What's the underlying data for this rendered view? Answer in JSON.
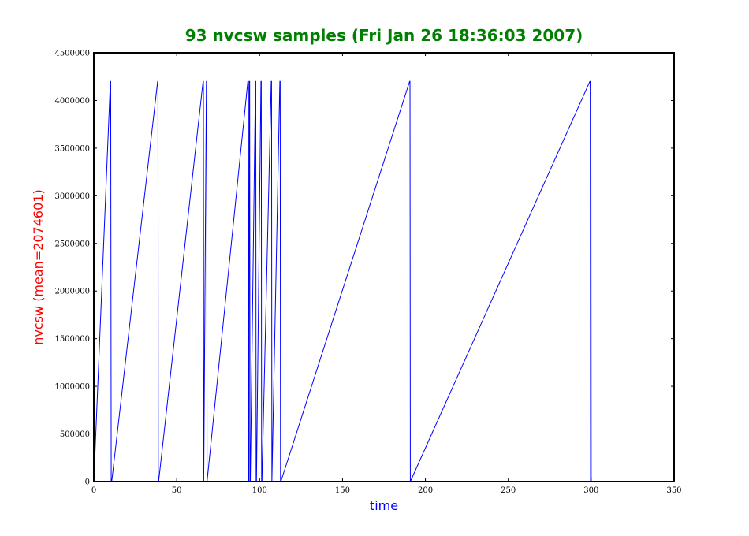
{
  "chart_data": {
    "type": "line",
    "title": "93 nvcsw samples (Fri Jan 26 18:36:03 2007)",
    "xlabel": "time",
    "ylabel": "nvcsw (mean=2074601)",
    "xlim": [
      0,
      350
    ],
    "ylim": [
      0,
      4500000
    ],
    "xticks": [
      0,
      50,
      100,
      150,
      200,
      250,
      300,
      350
    ],
    "yticks": [
      0,
      500000,
      1000000,
      1500000,
      2000000,
      2500000,
      3000000,
      3500000,
      4000000,
      4500000
    ],
    "grid": false,
    "series": [
      {
        "color": "#0000ff",
        "x": [
          0,
          10.0,
          10.2,
          10.5,
          10.8,
          38.5,
          38.7,
          38.9,
          39.1,
          65.9,
          66.1,
          66.3,
          67.9,
          68.1,
          68.3,
          92.9,
          93.1,
          93.3,
          93.5,
          93.7,
          94.0,
          94.2,
          94.4,
          97.5,
          97.7,
          97.9,
          98.1,
          100.8,
          101.0,
          101.2,
          101.4,
          107.0,
          107.2,
          107.4,
          112.2,
          112.4,
          112.6,
          112.8,
          190.5,
          190.7,
          190.9,
          299.2,
          299.4,
          299.6,
          299.8,
          300.0,
          300.2
        ],
        "y": [
          0,
          4200000,
          4200000,
          0,
          0,
          4200000,
          4200000,
          0,
          0,
          4200000,
          4200000,
          0,
          4200000,
          4200000,
          0,
          4200000,
          4200000,
          0,
          0,
          4200000,
          4200000,
          0,
          0,
          4200000,
          4200000,
          0,
          0,
          4200000,
          4200000,
          0,
          0,
          4200000,
          4200000,
          0,
          4200000,
          4200000,
          0,
          0,
          4200000,
          4200000,
          0,
          4200000,
          4200000,
          0,
          4200000,
          0,
          0
        ]
      }
    ]
  }
}
